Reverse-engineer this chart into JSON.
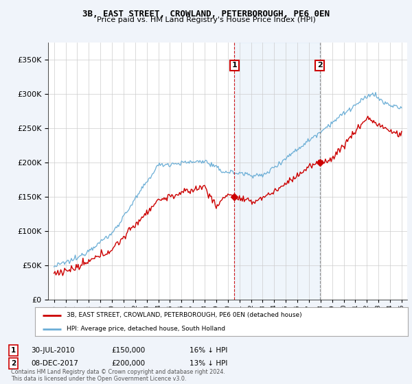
{
  "title": "3B, EAST STREET, CROWLAND, PETERBOROUGH, PE6 0EN",
  "subtitle": "Price paid vs. HM Land Registry's House Price Index (HPI)",
  "legend_line1": "3B, EAST STREET, CROWLAND, PETERBOROUGH, PE6 0EN (detached house)",
  "legend_line2": "HPI: Average price, detached house, South Holland",
  "annotation1": {
    "label": "1",
    "date": "30-JUL-2010",
    "price": "£150,000",
    "pct": "16% ↓ HPI"
  },
  "annotation2": {
    "label": "2",
    "date": "08-DEC-2017",
    "price": "£200,000",
    "pct": "13% ↓ HPI"
  },
  "hpi_color": "#6baed6",
  "hpi_fill_color": "#ddeeff",
  "price_color": "#cc0000",
  "background_color": "#f0f4fa",
  "plot_bg_color": "#ffffff",
  "grid_color": "#cccccc",
  "ylim": [
    0,
    375000
  ],
  "yticks": [
    0,
    50000,
    100000,
    150000,
    200000,
    250000,
    300000,
    350000
  ],
  "ytick_labels": [
    "£0",
    "£50K",
    "£100K",
    "£150K",
    "£200K",
    "£250K",
    "£300K",
    "£350K"
  ],
  "footnote": "Contains HM Land Registry data © Crown copyright and database right 2024.\nThis data is licensed under the Open Government Licence v3.0.",
  "sale1_x": 2010.57,
  "sale1_y": 150000,
  "sale2_x": 2017.93,
  "sale2_y": 200000,
  "xmin": 1994.5,
  "xmax": 2025.5
}
